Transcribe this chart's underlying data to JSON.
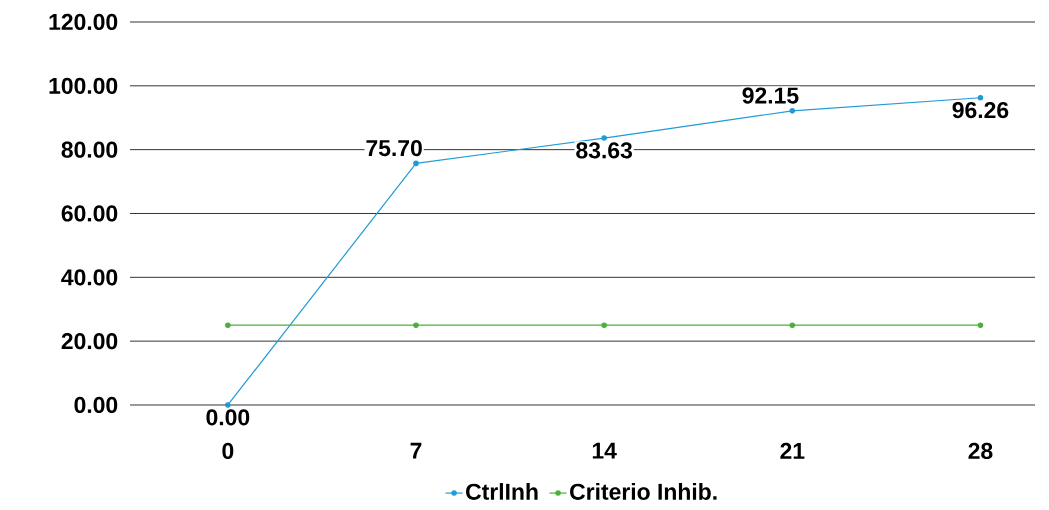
{
  "chart_data": {
    "type": "line",
    "categories": [
      "0",
      "7",
      "14",
      "21",
      "28"
    ],
    "series": [
      {
        "name": "CtrlInh",
        "color": "#1f9bd7",
        "values": [
          0,
          75.7,
          83.63,
          92.15,
          96.26
        ],
        "value_labels": [
          "0.00",
          "75.70",
          "83.63",
          "92.15",
          "96.26"
        ]
      },
      {
        "name": "Criterio Inhib.",
        "color": "#4caf3c",
        "values": [
          25,
          25,
          25,
          25,
          25
        ]
      }
    ],
    "ylim": [
      0,
      120
    ],
    "yticks": [
      {
        "value": 0,
        "label": "0.00"
      },
      {
        "value": 20,
        "label": "20.00"
      },
      {
        "value": 40,
        "label": "40.00"
      },
      {
        "value": 60,
        "label": "60.00"
      },
      {
        "value": 80,
        "label": "80.00"
      },
      {
        "value": 100,
        "label": "100.00"
      },
      {
        "value": 120,
        "label": "120.00"
      }
    ],
    "grid": "y",
    "legend": "bottom",
    "marker": "circle",
    "line_style": "solid"
  }
}
